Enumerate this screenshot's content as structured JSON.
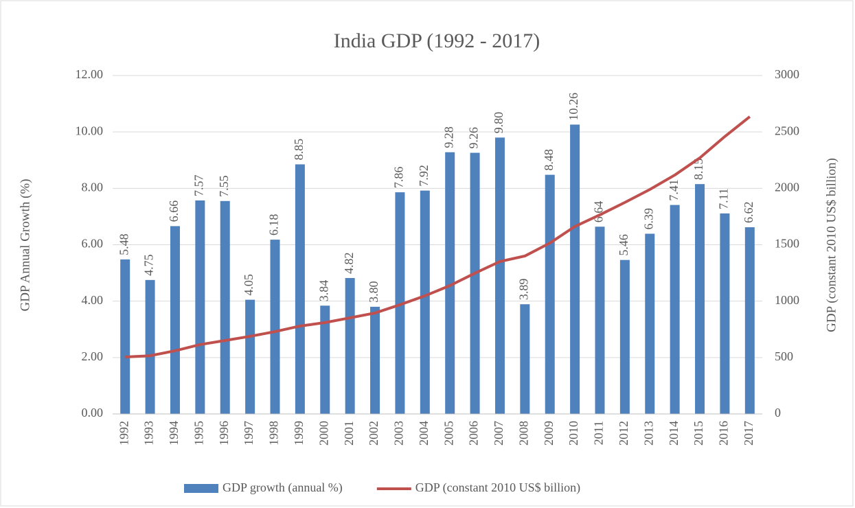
{
  "chart_data": {
    "type": "bar",
    "title": "India GDP (1992 - 2017)",
    "ylabel": "GDP Annual Growth (%)",
    "y2label": "GDP (constant 2010 US$ billion)",
    "categories": [
      "1992",
      "1993",
      "1994",
      "1995",
      "1996",
      "1997",
      "1998",
      "1999",
      "2000",
      "2001",
      "2002",
      "2003",
      "2004",
      "2005",
      "2006",
      "2007",
      "2008",
      "2009",
      "2010",
      "2011",
      "2012",
      "2013",
      "2014",
      "2015",
      "2016",
      "2017"
    ],
    "series": [
      {
        "name": "GDP growth (annual %)",
        "type": "bar",
        "axis": "y",
        "color": "#4f81bd",
        "values": [
          5.48,
          4.75,
          6.66,
          7.57,
          7.55,
          4.05,
          6.18,
          8.85,
          3.84,
          4.82,
          3.8,
          7.86,
          7.92,
          9.28,
          9.26,
          9.8,
          3.89,
          8.48,
          10.26,
          6.64,
          5.46,
          6.39,
          7.41,
          8.15,
          7.11,
          6.62
        ],
        "value_labels": [
          "5.48",
          "4.75",
          "6.66",
          "7.57",
          "7.55",
          "4.05",
          "6.18",
          "8.85",
          "3.84",
          "4.82",
          "3.80",
          "7.86",
          "7.92",
          "9.28",
          "9.26",
          "9.80",
          "3.89",
          "8.48",
          "10.26",
          "6.64",
          "5.46",
          "6.39",
          "7.41",
          "8.15",
          "7.11",
          "6.62"
        ]
      },
      {
        "name": "GDP (constant 2010 US$ billion)",
        "type": "line",
        "axis": "y2",
        "color": "#c0504d",
        "values": [
          505,
          516,
          560,
          615,
          651,
          688,
          730,
          779,
          810,
          852,
          895,
          968,
          1047,
          1138,
          1248,
          1351,
          1400,
          1515,
          1662,
          1765,
          1875,
          1990,
          2118,
          2270,
          2459,
          2635
        ]
      }
    ],
    "ylim": [
      0,
      12
    ],
    "yticks": [
      {
        "value": 0,
        "label": "0.00"
      },
      {
        "value": 2,
        "label": "2.00"
      },
      {
        "value": 4,
        "label": "4.00"
      },
      {
        "value": 6,
        "label": "6.00"
      },
      {
        "value": 8,
        "label": "8.00"
      },
      {
        "value": 10,
        "label": "10.00"
      },
      {
        "value": 12,
        "label": "12.00"
      }
    ],
    "y2lim": [
      0,
      3000
    ],
    "y2ticks": [
      0,
      500,
      1000,
      1500,
      2000,
      2500,
      3000
    ],
    "legend": "bottom"
  }
}
